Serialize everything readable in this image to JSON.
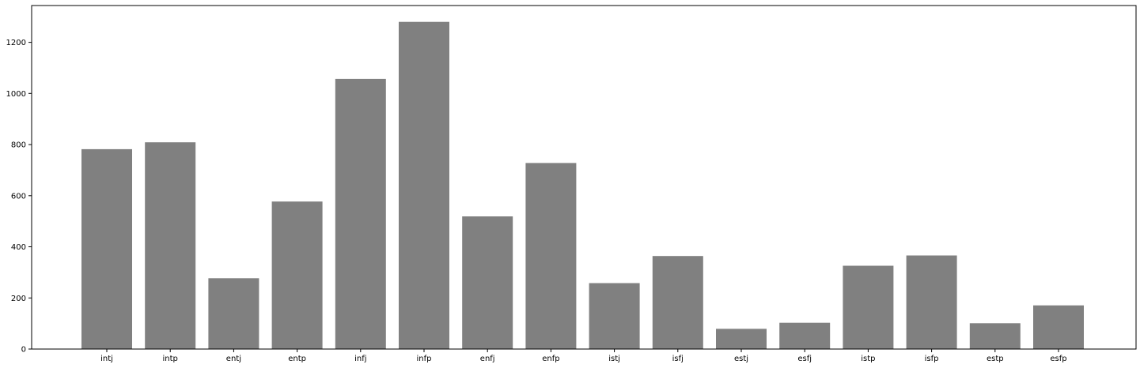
{
  "chart_data": {
    "type": "bar",
    "title": "",
    "xlabel": "",
    "ylabel": "",
    "categories": [
      "intj",
      "intp",
      "entj",
      "entp",
      "infj",
      "infp",
      "enfj",
      "enfp",
      "istj",
      "isfj",
      "estj",
      "esfj",
      "istp",
      "isfp",
      "estp",
      "esfp"
    ],
    "values": [
      782,
      809,
      277,
      577,
      1057,
      1280,
      519,
      728,
      258,
      364,
      79,
      103,
      326,
      366,
      101,
      171
    ],
    "x_tick_labels": [
      "intj",
      "intp",
      "entj",
      "entp",
      "infj",
      "infp",
      "enfj",
      "enfp",
      "istj",
      "isfj",
      "estj",
      "esfj",
      "istp",
      "isfp",
      "estp",
      "esfp"
    ],
    "y_ticks": [
      0,
      200,
      400,
      600,
      800,
      1000,
      1200
    ],
    "y_tick_labels": [
      "0",
      "200",
      "400",
      "600",
      "800",
      "1000",
      "1200"
    ],
    "ylim": [
      0,
      1344
    ],
    "bar_color": "#808080",
    "grid": false,
    "legend": "none",
    "note": "tick labels offset from bars as in the original figure"
  }
}
